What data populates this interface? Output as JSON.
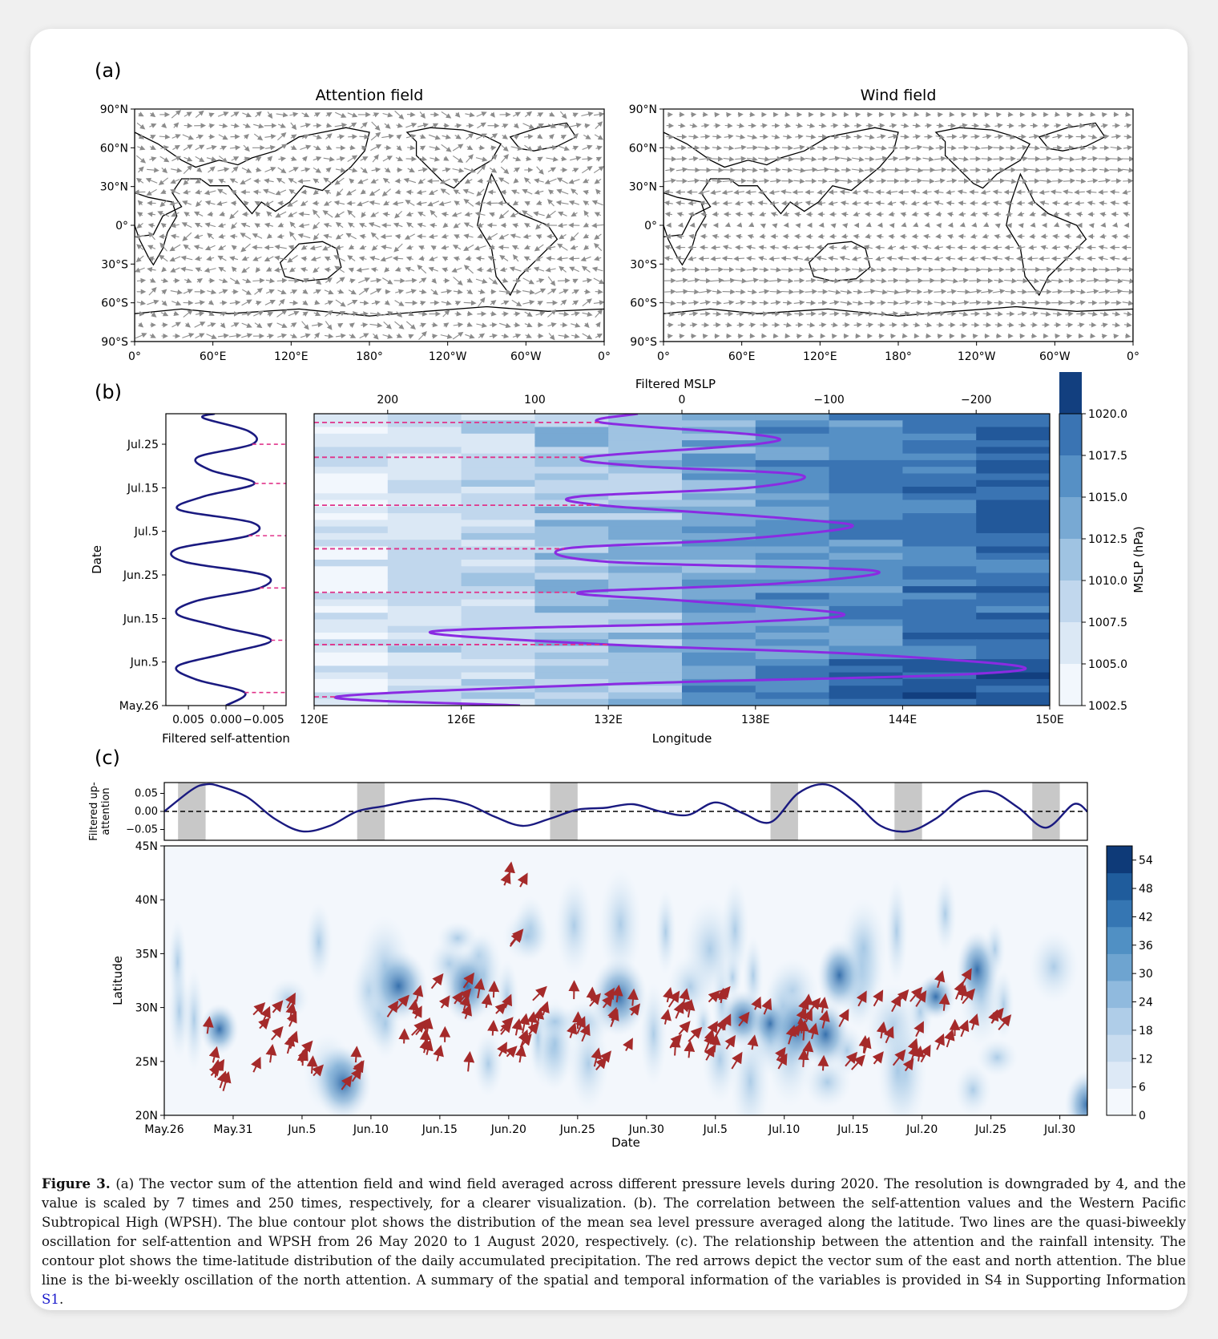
{
  "figure": {
    "panel_a": {
      "label": "(a)",
      "left_title": "Attention field",
      "right_title": "Wind field",
      "lat_ticks": [
        "90°N",
        "60°N",
        "30°N",
        "0°",
        "30°S",
        "60°S",
        "90°S"
      ],
      "lon_ticks": [
        "0°",
        "60°E",
        "120°E",
        "180°",
        "120°W",
        "60°W",
        "0°"
      ]
    },
    "panel_b": {
      "label": "(b)",
      "left_ylabel": "Date",
      "left_xlabel": "Filtered self-attention",
      "left_xticks": [
        "0.005",
        "0.000",
        "−0.005"
      ],
      "date_ticks": [
        "Jul.25",
        "Jul.15",
        "Jul.5",
        "Jun.25",
        "Jun.15",
        "Jun.5",
        "May.26"
      ],
      "top_xlabel": "Filtered MSLP",
      "top_xticks": [
        "200",
        "100",
        "0",
        "−100",
        "−200"
      ],
      "bottom_xlabel": "Longitude",
      "bottom_xticks": [
        "120E",
        "126E",
        "132E",
        "138E",
        "144E",
        "150E"
      ],
      "colorbar_label": "MSLP (hPa)",
      "colorbar_ticks": [
        "1020.0",
        "1017.5",
        "1015.0",
        "1012.5",
        "1010.0",
        "1007.5",
        "1005.0",
        "1002.5"
      ]
    },
    "panel_c": {
      "label": "(c)",
      "top_ylabel": "Filtered up-\nattention",
      "top_yticks": [
        "0.05",
        "0.00",
        "−0.05"
      ],
      "lat_ylabel": "Latitude",
      "lat_ticks": [
        "45N",
        "40N",
        "35N",
        "30N",
        "25N",
        "20N"
      ],
      "xlabel": "Date",
      "date_ticks": [
        "May.26",
        "May.31",
        "Jun.5",
        "Jun.10",
        "Jun.15",
        "Jun.20",
        "Jun.25",
        "Jun.30",
        "Jul.5",
        "Jul.10",
        "Jul.15",
        "Jul.20",
        "Jul.25",
        "Jul.30"
      ],
      "colorbar_ticks": [
        "54",
        "48",
        "42",
        "36",
        "30",
        "24",
        "18",
        "12",
        "6",
        "0"
      ]
    }
  },
  "chart_data": [
    {
      "type": "line",
      "panel": "b-left",
      "xlabel": "Filtered self-attention",
      "ylabel": "Date",
      "xlim": [
        0.008,
        -0.008
      ],
      "y_days_from_may26": [
        0,
        3,
        6,
        9,
        12,
        15,
        18,
        21,
        24,
        27,
        30,
        33,
        36,
        39,
        42,
        45,
        48,
        51,
        54,
        57,
        60,
        63,
        66,
        67
      ],
      "values": [
        0.0,
        -0.0025,
        0.004,
        0.0065,
        0.0,
        -0.006,
        0.0005,
        0.0065,
        0.004,
        -0.0045,
        -0.005,
        0.0055,
        0.0065,
        -0.003,
        -0.0035,
        0.0063,
        0.003,
        -0.0038,
        0.002,
        0.0038,
        -0.0035,
        -0.003,
        0.003,
        0.0015
      ]
    },
    {
      "type": "heatmap",
      "panel": "b-main",
      "xlabel": "Longitude",
      "xlim": [
        "120E",
        "150E"
      ],
      "top_line_label": "Filtered MSLP",
      "top_xlim": [
        250,
        -250
      ],
      "colorbar_range_hPa": [
        1002.5,
        1020.0
      ],
      "filtered_mslp_line": {
        "days_from_may26": [
          0,
          2,
          5,
          7,
          9,
          12,
          14,
          17,
          19,
          21,
          24,
          26,
          28,
          31,
          33,
          36,
          38,
          41,
          43,
          46,
          48,
          50,
          53,
          55,
          57,
          60,
          62,
          65,
          67
        ],
        "values": [
          110,
          235,
          40,
          -180,
          -230,
          -110,
          50,
          170,
          -30,
          -110,
          -5,
          70,
          -65,
          -130,
          50,
          80,
          -30,
          -115,
          -70,
          55,
          70,
          -45,
          -80,
          30,
          65,
          -50,
          -55,
          55,
          30
        ]
      }
    },
    {
      "type": "line",
      "panel": "c-top",
      "ylabel": "Filtered up-attention",
      "ylim": [
        -0.08,
        0.08
      ],
      "days_from_may26": [
        0,
        2,
        3,
        4,
        6,
        8,
        10,
        12,
        14,
        16,
        18,
        20,
        22,
        24,
        26,
        28,
        30,
        32,
        34,
        36,
        38,
        40,
        42,
        44,
        46,
        48,
        50,
        52,
        54,
        56,
        58,
        60,
        62,
        64,
        66,
        67
      ],
      "values": [
        0.0,
        0.06,
        0.075,
        0.07,
        0.04,
        -0.02,
        -0.055,
        -0.04,
        0.0,
        0.015,
        0.03,
        0.035,
        0.02,
        -0.015,
        -0.04,
        -0.02,
        0.005,
        0.01,
        0.02,
        0.0,
        -0.01,
        0.025,
        -0.005,
        -0.03,
        0.05,
        0.075,
        0.03,
        -0.04,
        -0.055,
        -0.02,
        0.04,
        0.055,
        0.01,
        -0.045,
        0.02,
        0.0
      ]
    },
    {
      "type": "heatmap",
      "panel": "c-main",
      "xlabel": "Date",
      "ylabel": "Latitude",
      "ylim": [
        20,
        45
      ],
      "colorbar_range": [
        0,
        57
      ]
    }
  ],
  "caption": {
    "label": "Figure 3.",
    "text": " (a) The vector sum of the attention field and wind field averaged across different pressure levels during 2020. The resolution is downgraded by 4, and the value is scaled by 7 times and 250 times, respectively, for a clearer visualization. (b). The correlation between the self-attention values and the Western Pacific Subtropical High (WPSH). The blue contour plot shows the distribution of the mean sea level pressure averaged along the latitude. Two lines are the quasi-biweekly oscillation for self-attention and WPSH from 26 May 2020 to 1 August 2020, respectively. (c). The relationship between the attention and the rainfall intensity. The contour plot shows the time-latitude distribution of the daily accumulated precipitation. The red arrows depict the vector sum of the east and north attention. The blue line is the bi-weekly oscillation of the north attention. A summary of the spatial and temporal information of the variables is provided in S4 in Supporting Information ",
    "link": "S1",
    "end": "."
  },
  "colors": {
    "navy_line": "#1a1a80",
    "purple_line": "#8a2be2",
    "dash_pink": "#e0338a",
    "arrow_red": "#a52a2a",
    "vector_gray": "#8c8c8c"
  }
}
